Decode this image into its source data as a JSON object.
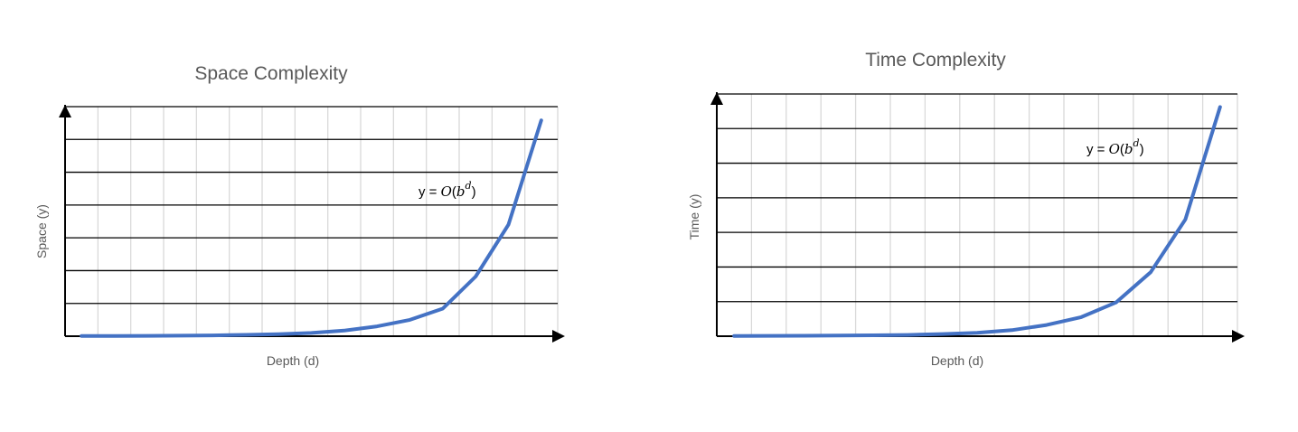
{
  "colors": {
    "series": "#4472C4",
    "axis": "#000000",
    "hgrid": "#000000",
    "vgrid": "#d9d9d9",
    "text": "#595959"
  },
  "chart_data": [
    {
      "type": "line",
      "title": "Space Complexity",
      "xlabel": "Depth (d)",
      "ylabel": "Space (y)",
      "annotation": {
        "prefix": "y = ",
        "func": "O",
        "base": "b",
        "exponent": "d"
      },
      "grid": {
        "horizontal": true,
        "vertical": true
      },
      "x": [
        1,
        2,
        3,
        4,
        5,
        6,
        7,
        8,
        9,
        10,
        11,
        12,
        13,
        14,
        15
      ],
      "series": [
        {
          "values": [
            0.003,
            0.004,
            0.005,
            0.008,
            0.012,
            0.02,
            0.03,
            0.05,
            0.085,
            0.15,
            0.25,
            0.42,
            0.91,
            1.7,
            3.29
          ]
        }
      ],
      "xlim": [
        0.5,
        15.5
      ],
      "ylim": [
        0,
        3.5
      ]
    },
    {
      "type": "line",
      "title": "Time Complexity",
      "xlabel": "Depth (d)",
      "ylabel": "Time (y)",
      "annotation": {
        "prefix": "y = ",
        "func": "O",
        "base": "b",
        "exponent": "d"
      },
      "grid": {
        "horizontal": true,
        "vertical": true
      },
      "x": [
        1,
        2,
        3,
        4,
        5,
        6,
        7,
        8,
        9,
        10,
        11,
        12,
        13,
        14,
        15
      ],
      "series": [
        {
          "values": [
            0.003,
            0.004,
            0.005,
            0.007,
            0.01,
            0.015,
            0.025,
            0.04,
            0.07,
            0.13,
            0.22,
            0.39,
            0.74,
            1.35,
            2.65
          ]
        }
      ],
      "xlim": [
        0.5,
        15.5
      ],
      "ylim": [
        0,
        2.8
      ]
    }
  ]
}
